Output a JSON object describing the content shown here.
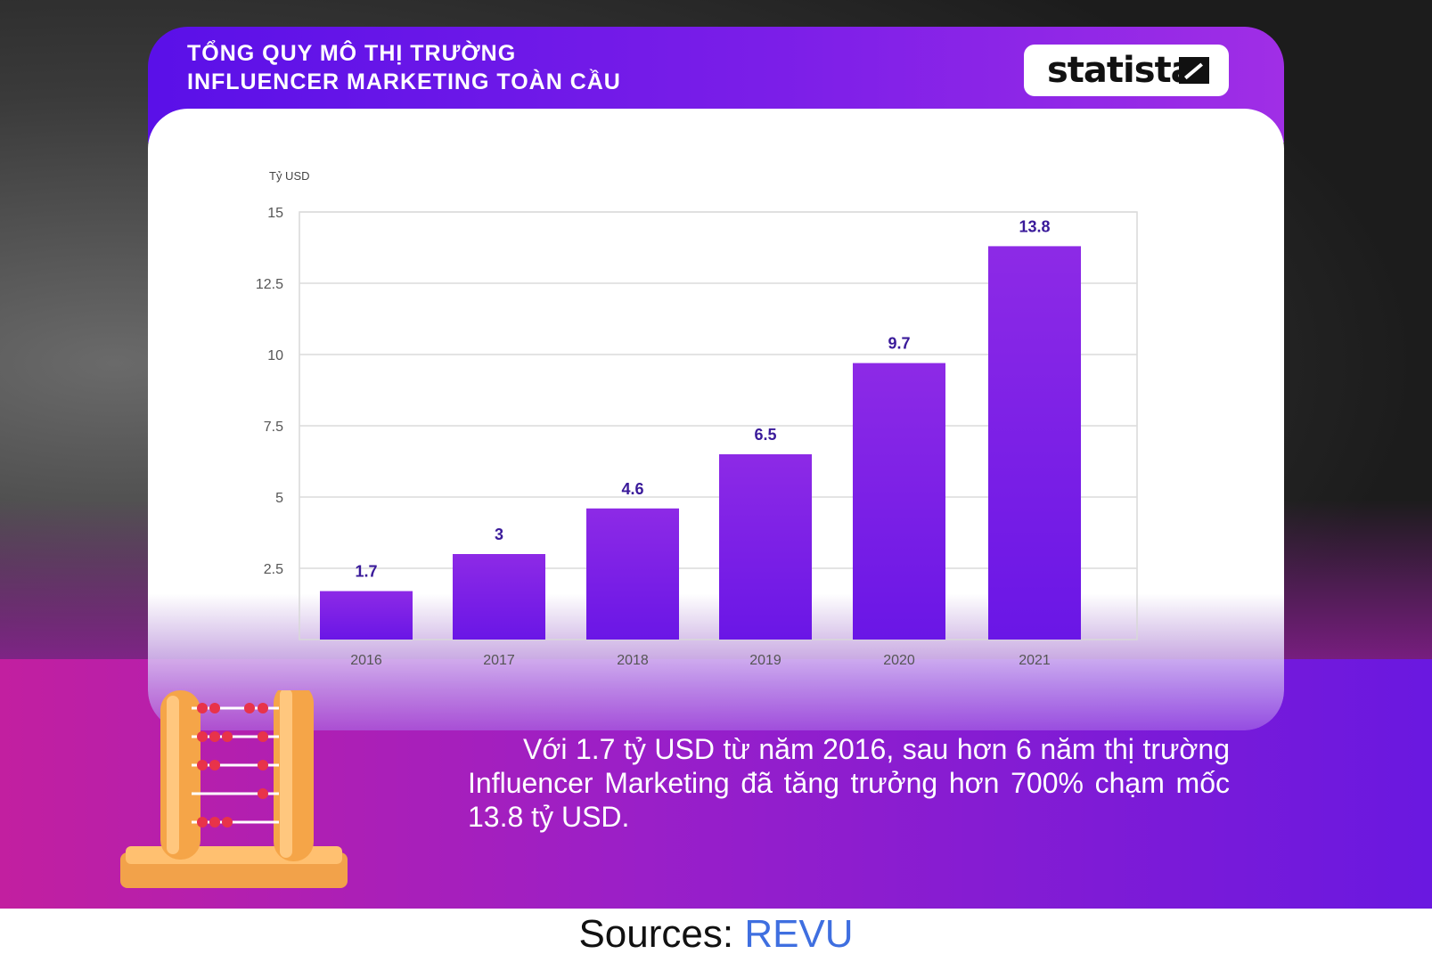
{
  "header": {
    "title_line1": "TỔNG QUY MÔ THỊ TRƯỜNG",
    "title_line2": "INFLUENCER MARKETING TOÀN CẦU",
    "logo_text": "statista"
  },
  "chart_data": {
    "type": "bar",
    "ylabel": "Tỷ USD",
    "categories": [
      "2016",
      "2017",
      "2018",
      "2019",
      "2020",
      "2021"
    ],
    "values": [
      1.7,
      3,
      4.6,
      6.5,
      9.7,
      13.8
    ],
    "value_labels": [
      "1.7",
      "3",
      "4.6",
      "6.5",
      "9.7",
      "13.8"
    ],
    "yticks": [
      "15",
      "12.5",
      "10",
      "7.5",
      "5",
      "2.5"
    ],
    "ytick_values": [
      15,
      12.5,
      10,
      7.5,
      5,
      2.5
    ],
    "ylim": [
      0,
      15
    ],
    "grid": true,
    "bar_color_top": "#8d2ae6",
    "bar_color_bottom": "#6a16e6",
    "label_color": "#3a1a9a"
  },
  "caption": "Với 1.7 tỷ USD từ năm 2016, sau hơn 6 năm thị trường Influencer Marketing đã tăng trưởng hơn 700% chạm mốc 13.8 tỷ USD.",
  "footer": {
    "label": "Sources: ",
    "source": "REVU"
  },
  "colors": {
    "accent": "#6a16e6",
    "source_link": "#3f6fe0"
  }
}
